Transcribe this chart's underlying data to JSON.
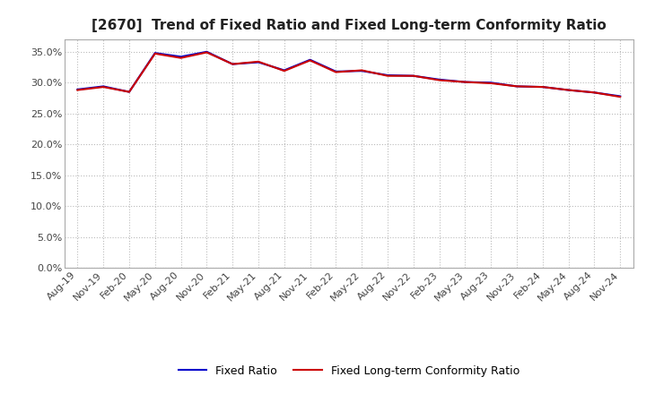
{
  "title": "[2670]  Trend of Fixed Ratio and Fixed Long-term Conformity Ratio",
  "x_labels": [
    "Aug-19",
    "Nov-19",
    "Feb-20",
    "May-20",
    "Aug-20",
    "Nov-20",
    "Feb-21",
    "May-21",
    "Aug-21",
    "Nov-21",
    "Feb-22",
    "May-22",
    "Aug-22",
    "Nov-22",
    "Feb-23",
    "May-23",
    "Aug-23",
    "Nov-23",
    "Feb-24",
    "May-24",
    "Aug-24",
    "Nov-24"
  ],
  "fixed_ratio": [
    0.289,
    0.294,
    0.285,
    0.348,
    0.342,
    0.35,
    0.33,
    0.333,
    0.32,
    0.337,
    0.318,
    0.319,
    0.312,
    0.311,
    0.305,
    0.301,
    0.3,
    0.294,
    0.293,
    0.288,
    0.284,
    0.278
  ],
  "fixed_lt_ratio": [
    0.288,
    0.293,
    0.285,
    0.347,
    0.34,
    0.349,
    0.33,
    0.334,
    0.319,
    0.336,
    0.317,
    0.32,
    0.311,
    0.311,
    0.304,
    0.301,
    0.299,
    0.294,
    0.293,
    0.288,
    0.284,
    0.277
  ],
  "fixed_ratio_color": "#0000cc",
  "fixed_lt_ratio_color": "#cc0000",
  "ylim": [
    0.0,
    0.37
  ],
  "yticks": [
    0.0,
    0.05,
    0.1,
    0.15,
    0.2,
    0.25,
    0.3,
    0.35
  ],
  "background_color": "#ffffff",
  "grid_color": "#bbbbbb",
  "legend_fixed_ratio": "Fixed Ratio",
  "legend_fixed_lt_ratio": "Fixed Long-term Conformity Ratio",
  "title_fontsize": 11,
  "axis_fontsize": 8,
  "legend_fontsize": 9
}
